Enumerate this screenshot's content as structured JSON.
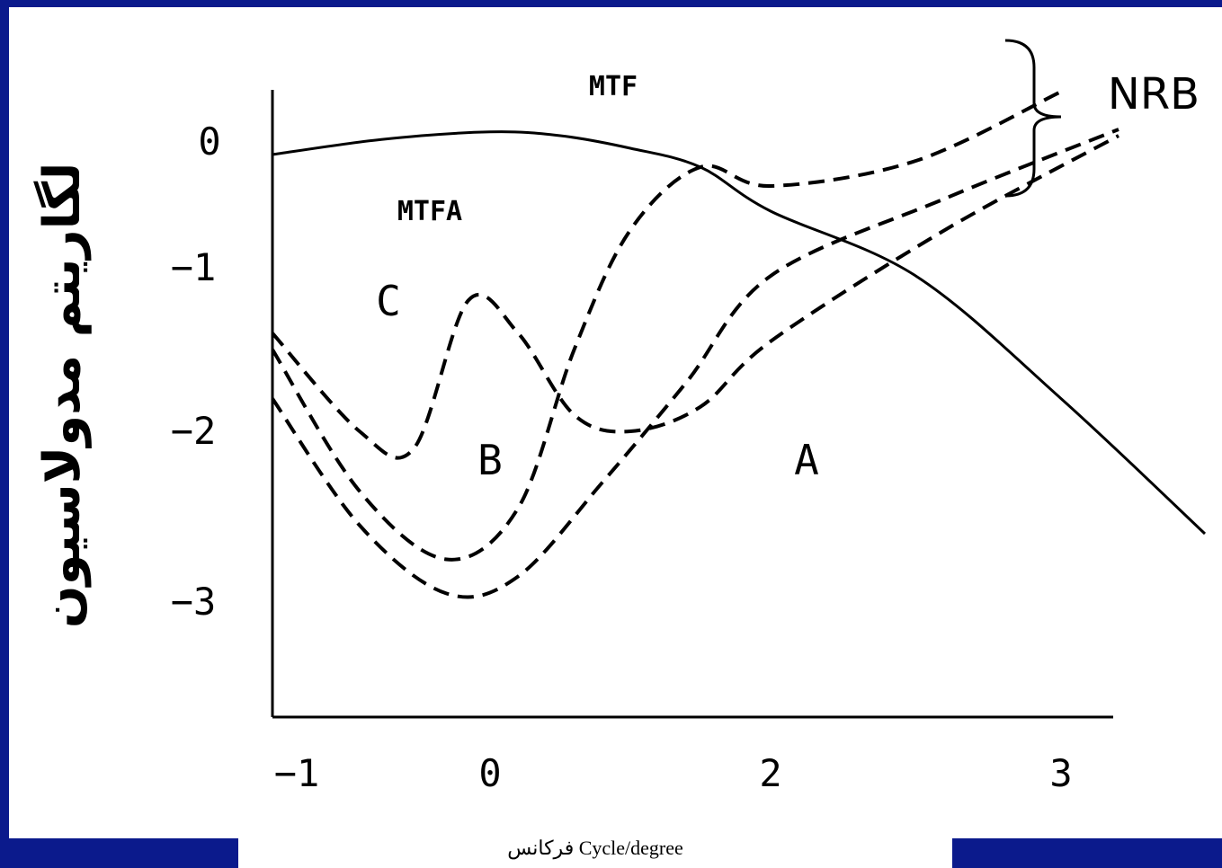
{
  "caption": "فرکانس Cycle/degree",
  "colors": {
    "background": "#0b1a8c",
    "panel": "#ffffff",
    "ink": "#000000"
  },
  "chart_data": {
    "type": "line",
    "ylabel": "لگاریتم مدولاسیون",
    "xticks": [
      "−1",
      "0",
      "2",
      "3"
    ],
    "yticks": [
      "0",
      "−1",
      "−2",
      "−3"
    ],
    "xlim": [
      -1,
      3
    ],
    "ylim": [
      -3.5,
      0.4
    ],
    "annotations": {
      "mtf": "MTF",
      "mtfa": "MTFA",
      "nrb": "NRB",
      "a": "A",
      "b": "B",
      "c": "C"
    },
    "series": [
      {
        "name": "MTF",
        "style": "solid",
        "points": [
          [
            -1,
            -0.1
          ],
          [
            -0.5,
            0.02
          ],
          [
            0,
            0.08
          ],
          [
            0.5,
            0.05
          ],
          [
            1.0,
            -0.05
          ],
          [
            1.5,
            -0.2
          ],
          [
            2.0,
            -0.55
          ],
          [
            2.5,
            -1.05
          ],
          [
            3.0,
            -1.8
          ],
          [
            3.5,
            -2.6
          ]
        ]
      },
      {
        "name": "A",
        "style": "dashed",
        "points": [
          [
            -1,
            -1.8
          ],
          [
            -0.6,
            -2.55
          ],
          [
            -0.2,
            -2.95
          ],
          [
            0.2,
            -2.85
          ],
          [
            0.8,
            -2.3
          ],
          [
            1.4,
            -1.7
          ],
          [
            2.0,
            -1.05
          ],
          [
            2.6,
            -0.45
          ],
          [
            3.2,
            0.1
          ]
        ]
      },
      {
        "name": "B",
        "style": "dashed",
        "points": [
          [
            -1,
            -1.5
          ],
          [
            -0.6,
            -2.35
          ],
          [
            -0.2,
            -2.75
          ],
          [
            0.2,
            -2.45
          ],
          [
            0.6,
            -1.5
          ],
          [
            1.0,
            -0.7
          ],
          [
            1.5,
            -0.2
          ],
          [
            2.0,
            -0.35
          ],
          [
            2.5,
            -0.15
          ],
          [
            3.0,
            0.4
          ]
        ]
      },
      {
        "name": "C",
        "style": "dashed",
        "points": [
          [
            -1,
            -1.4
          ],
          [
            -0.6,
            -2.0
          ],
          [
            -0.35,
            -2.1
          ],
          [
            -0.1,
            -1.2
          ],
          [
            0.2,
            -1.4
          ],
          [
            0.6,
            -1.9
          ],
          [
            1.0,
            -2.0
          ],
          [
            1.5,
            -1.85
          ],
          [
            2.0,
            -1.45
          ],
          [
            2.6,
            -0.7
          ],
          [
            3.2,
            0.05
          ]
        ]
      }
    ]
  }
}
